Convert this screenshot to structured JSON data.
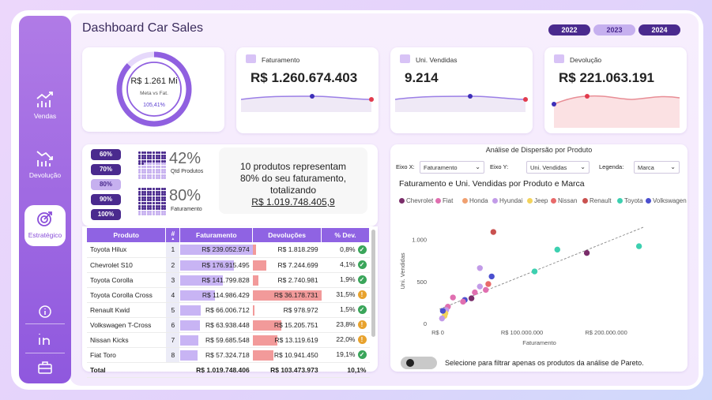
{
  "header": {
    "title": "Dashboard Car Sales",
    "years": [
      "2022",
      "2023",
      "2024"
    ],
    "selected_year": "2023"
  },
  "sidebar": {
    "items": [
      {
        "label": "Vendas"
      },
      {
        "label": "Devolução"
      },
      {
        "label": "Estratégico"
      }
    ]
  },
  "gauge": {
    "value": "R$ 1.261 Mi",
    "subtitle": "Meta vs Fat.",
    "percent": "105,41%",
    "fill": 0.87
  },
  "kpis": [
    {
      "label": "Faturamento",
      "value": "R$ 1.260.674.403",
      "accent": "#5b3fd1"
    },
    {
      "label": "Uni. Vendidas",
      "value": "9.214",
      "accent": "#5b3fd1"
    },
    {
      "label": "Devolução",
      "value": "R$ 221.063.191",
      "accent": "#e23b4d"
    }
  ],
  "pareto": {
    "pct_options": [
      "60%",
      "70%",
      "80%",
      "90%",
      "100%"
    ],
    "selected_pct": "80%",
    "qtd_value": "42%",
    "qtd_label": "Qtd Produtos",
    "fat_value": "80%",
    "fat_label": "Faturamento",
    "summary_1": "10 produtos representam",
    "summary_2": "80% do seu faturamento,",
    "summary_3": "totalizando",
    "summary_4": "R$ 1.019.748.405,9"
  },
  "table": {
    "headers": [
      "Produto",
      "#",
      "Faturamento",
      "Devoluções",
      "% Dev."
    ],
    "rows": [
      {
        "produto": "Toyota Hilux",
        "rank": "1",
        "fat": "R$ 239.052.974",
        "dev": "R$ 1.818.299",
        "pct": "0,8%",
        "status": "ok",
        "fat_frac": 1.0,
        "dev_frac": 0.05
      },
      {
        "produto": "Chevrolet S10",
        "rank": "2",
        "fat": "R$ 176.915.495",
        "dev": "R$ 7.244.699",
        "pct": "4,1%",
        "status": "ok",
        "fat_frac": 0.74,
        "dev_frac": 0.2
      },
      {
        "produto": "Toyota Corolla",
        "rank": "3",
        "fat": "R$ 141.799.828",
        "dev": "R$ 2.740.981",
        "pct": "1,9%",
        "status": "ok",
        "fat_frac": 0.59,
        "dev_frac": 0.08
      },
      {
        "produto": "Toyota Corolla Cross",
        "rank": "4",
        "fat": "R$ 114.986.429",
        "dev": "R$ 36.178.731",
        "pct": "31,5%",
        "status": "warn",
        "fat_frac": 0.48,
        "dev_frac": 1.0
      },
      {
        "produto": "Renault Kwid",
        "rank": "5",
        "fat": "R$ 66.006.712",
        "dev": "R$ 978.972",
        "pct": "1,5%",
        "status": "ok",
        "fat_frac": 0.28,
        "dev_frac": 0.03
      },
      {
        "produto": "Volkswagen T-Cross",
        "rank": "6",
        "fat": "R$ 63.938.448",
        "dev": "R$ 15.205.751",
        "pct": "23,8%",
        "status": "warn",
        "fat_frac": 0.27,
        "dev_frac": 0.42
      },
      {
        "produto": "Nissan Kicks",
        "rank": "7",
        "fat": "R$ 59.685.548",
        "dev": "R$ 13.119.619",
        "pct": "22,0%",
        "status": "warn",
        "fat_frac": 0.25,
        "dev_frac": 0.36
      },
      {
        "produto": "Fiat Toro",
        "rank": "8",
        "fat": "R$ 57.324.718",
        "dev": "R$ 10.941.450",
        "pct": "19,1%",
        "status": "ok",
        "fat_frac": 0.24,
        "dev_frac": 0.3
      }
    ],
    "total": {
      "label": "Total",
      "fat": "R$ 1.019.748.406",
      "dev": "R$ 103.473.973",
      "pct": "10,1%"
    }
  },
  "scatter_panel": {
    "title": "Análise de Dispersão por Produto",
    "eixo_x_label": "Eixo X:",
    "eixo_x_value": "Faturamento",
    "eixo_y_label": "Eixo Y:",
    "eixo_y_value": "Uni. Vendidas",
    "legenda_label": "Legenda:",
    "legenda_value": "Marca",
    "toggle_text": "Selecione para filtrar apenas os produtos da análise de Pareto."
  },
  "chart_data": {
    "type": "scatter",
    "title": "Faturamento e Uni. Vendidas por Produto e Marca",
    "xlabel": "Faturamento",
    "ylabel": "Uni. Vendidas",
    "xlim": [
      0,
      260000000
    ],
    "ylim": [
      0,
      1250
    ],
    "xticks": [
      {
        "v": 0,
        "label": "R$ 0"
      },
      {
        "v": 100000000,
        "label": "R$ 100.000.000"
      },
      {
        "v": 200000000,
        "label": "R$ 200.000.000"
      }
    ],
    "yticks": [
      {
        "v": 0,
        "label": "0"
      },
      {
        "v": 500,
        "label": "500"
      },
      {
        "v": 1000,
        "label": "1.000"
      }
    ],
    "legend": [
      {
        "name": "Chevrolet",
        "color": "#7a2d6a"
      },
      {
        "name": "Fiat",
        "color": "#e06fb0"
      },
      {
        "name": "Honda",
        "color": "#f0a070"
      },
      {
        "name": "Hyundai",
        "color": "#c29be8"
      },
      {
        "name": "Jeep",
        "color": "#f3d35c"
      },
      {
        "name": "Nissan",
        "color": "#e86a6a"
      },
      {
        "name": "Renault",
        "color": "#c9514f"
      },
      {
        "name": "Toyota",
        "color": "#3dd0b0"
      },
      {
        "name": "Volkswagen",
        "color": "#4b4fcf"
      }
    ],
    "points": [
      {
        "x": 239000000,
        "y": 920,
        "brand": "Toyota"
      },
      {
        "x": 177000000,
        "y": 840,
        "brand": "Chevrolet"
      },
      {
        "x": 142000000,
        "y": 880,
        "brand": "Toyota"
      },
      {
        "x": 115000000,
        "y": 620,
        "brand": "Toyota"
      },
      {
        "x": 66000000,
        "y": 1090,
        "brand": "Renault"
      },
      {
        "x": 64000000,
        "y": 560,
        "brand": "Volkswagen"
      },
      {
        "x": 60000000,
        "y": 470,
        "brand": "Nissan"
      },
      {
        "x": 57000000,
        "y": 400,
        "brand": "Fiat"
      },
      {
        "x": 50000000,
        "y": 660,
        "brand": "Hyundai"
      },
      {
        "x": 50000000,
        "y": 440,
        "brand": "Hyundai"
      },
      {
        "x": 44000000,
        "y": 370,
        "brand": "Fiat"
      },
      {
        "x": 40000000,
        "y": 300,
        "brand": "Chevrolet"
      },
      {
        "x": 32000000,
        "y": 280,
        "brand": "Volkswagen"
      },
      {
        "x": 30000000,
        "y": 260,
        "brand": "Fiat"
      },
      {
        "x": 18000000,
        "y": 310,
        "brand": "Fiat"
      },
      {
        "x": 12000000,
        "y": 200,
        "brand": "Fiat"
      },
      {
        "x": 10000000,
        "y": 160,
        "brand": "Hyundai"
      },
      {
        "x": 9000000,
        "y": 120,
        "brand": "Jeep"
      },
      {
        "x": 8000000,
        "y": 90,
        "brand": "Jeep"
      },
      {
        "x": 6000000,
        "y": 150,
        "brand": "Volkswagen"
      },
      {
        "x": 5000000,
        "y": 60,
        "brand": "Hyundai"
      }
    ],
    "trend": [
      {
        "x": 2000000,
        "y": 170
      },
      {
        "x": 245000000,
        "y": 1150
      }
    ]
  }
}
